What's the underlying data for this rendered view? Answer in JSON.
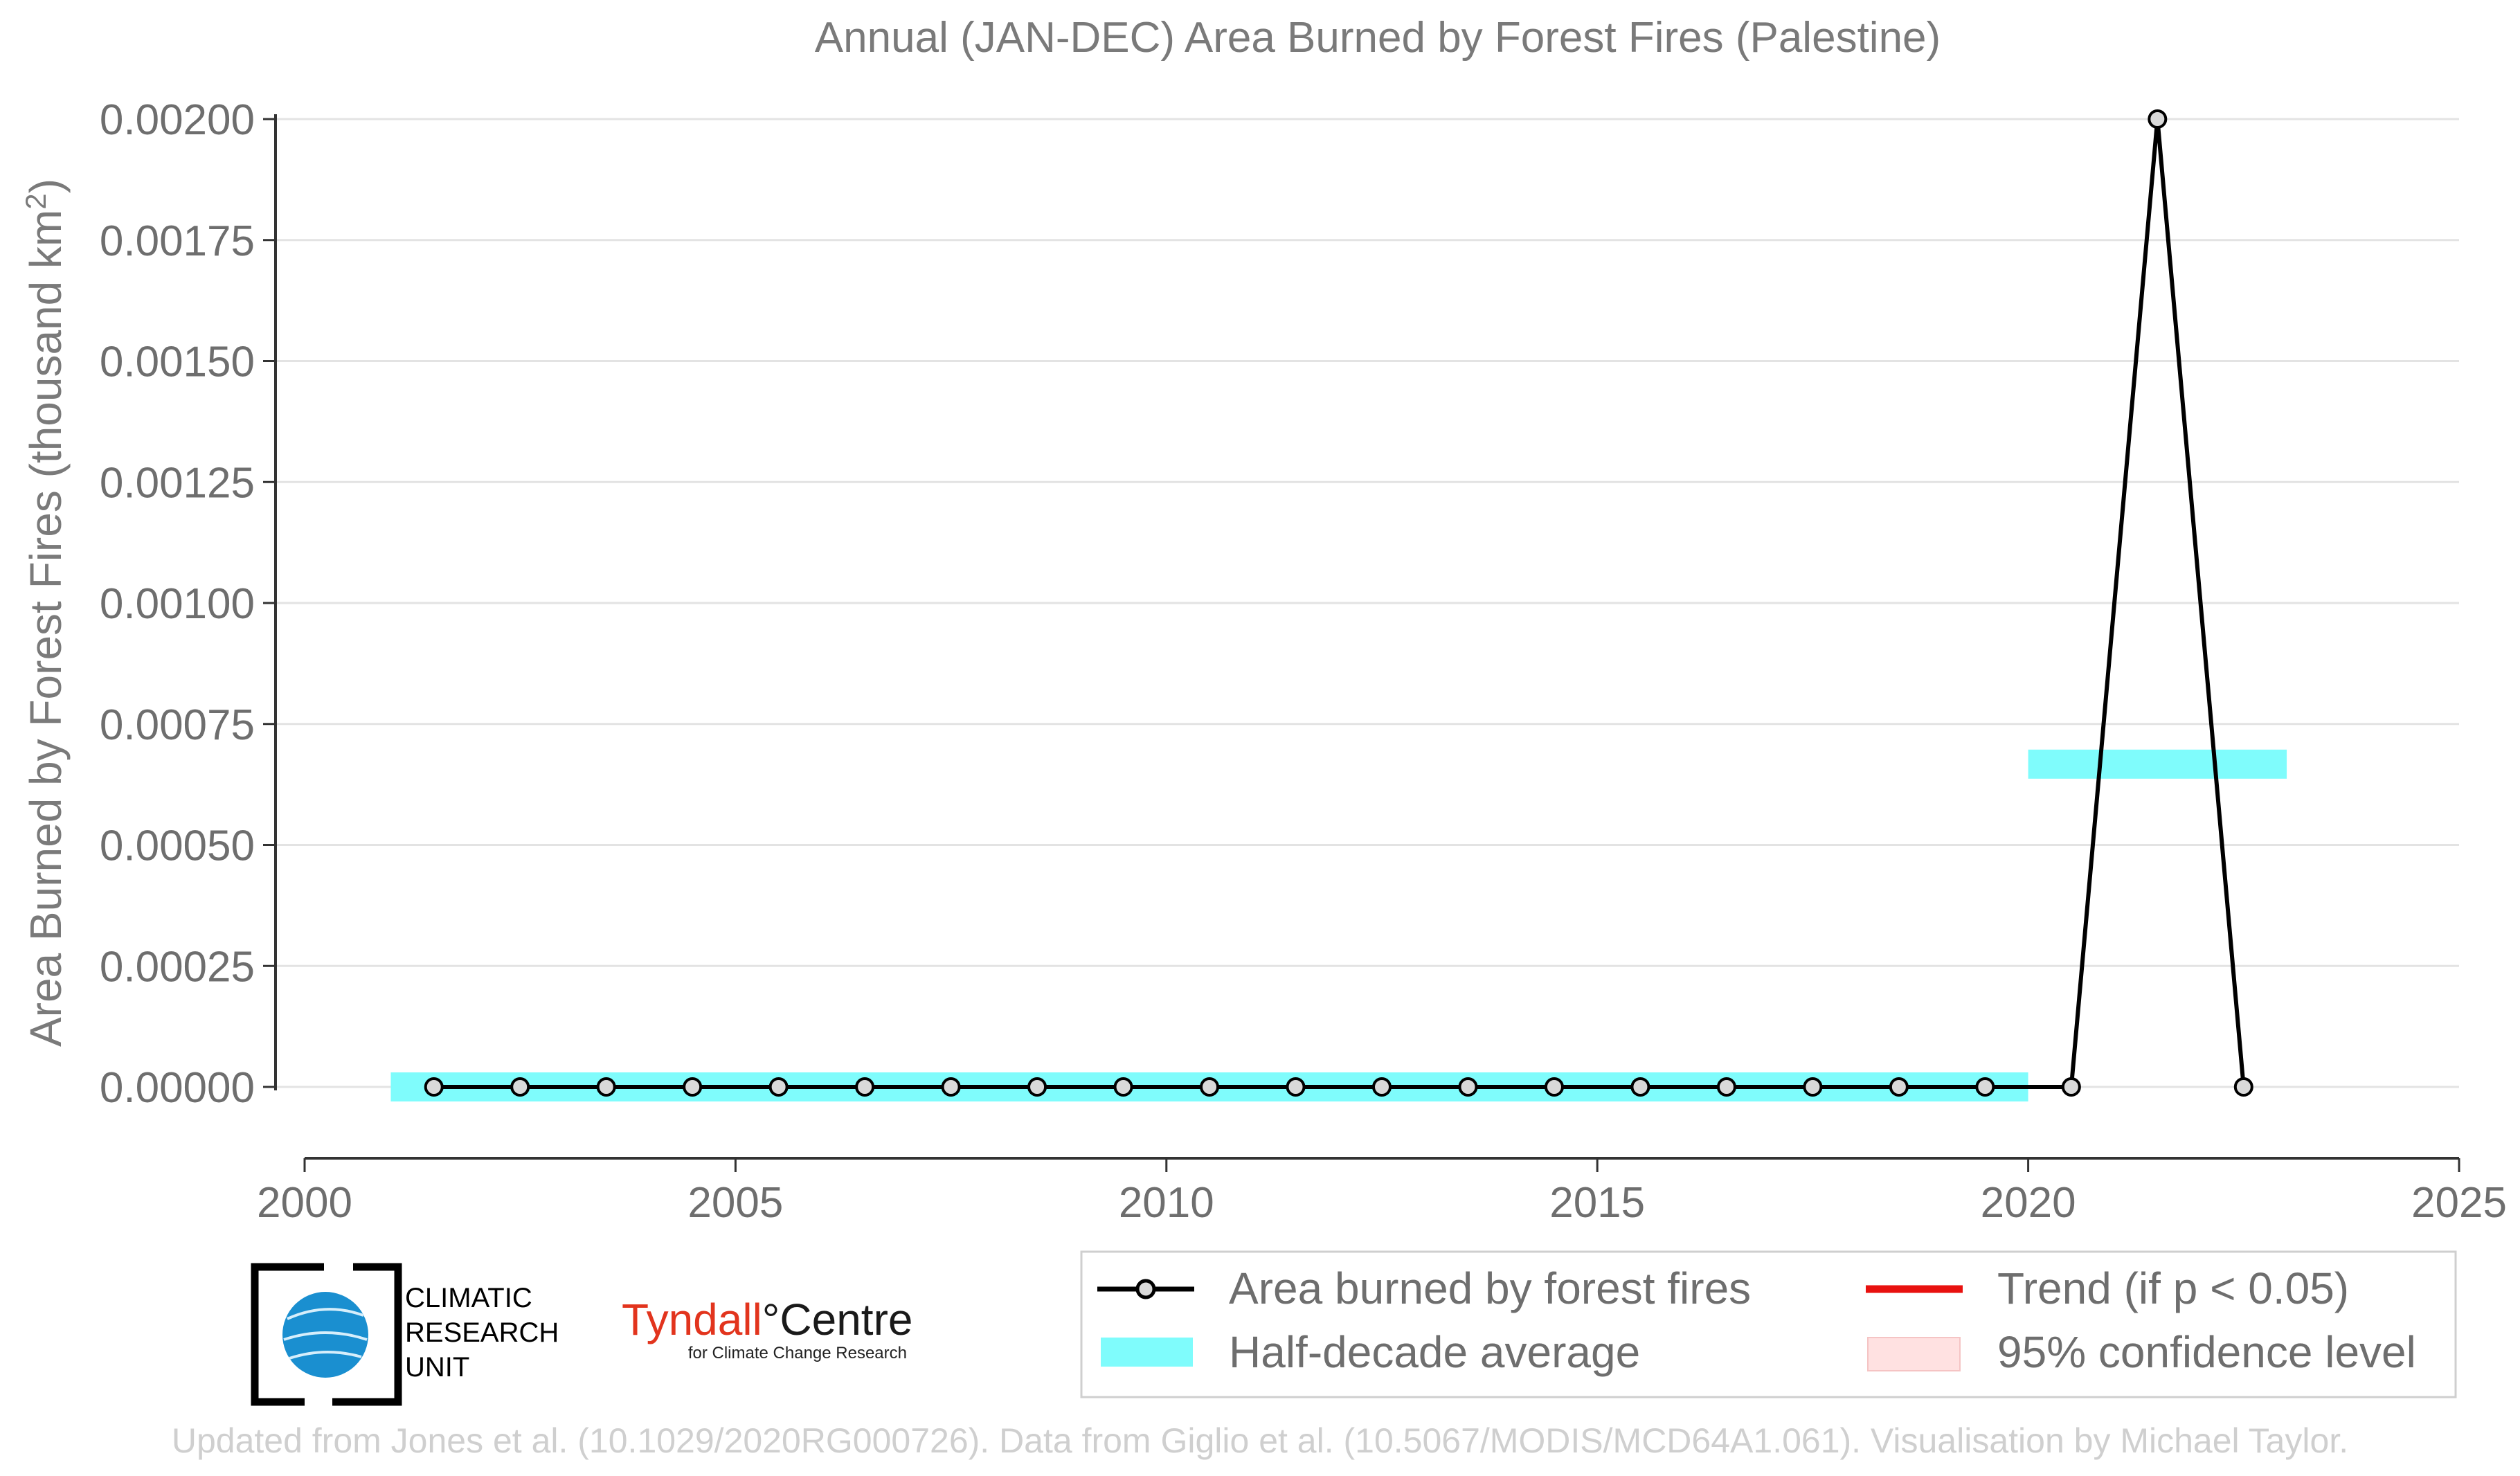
{
  "chart_data": {
    "type": "line",
    "title": "Annual (JAN-DEC) Area Burned by Forest Fires (Palestine)",
    "ylabel": "Area Burned by Forest Fires (thousand km²)",
    "xlabel": "",
    "xlim": [
      2000,
      2025
    ],
    "ylim": [
      -0.00015,
      0.002
    ],
    "x_ticks": [
      "2000",
      "2005",
      "2010",
      "2015",
      "2020",
      "2025"
    ],
    "y_ticks": [
      "0.00000",
      "0.00025",
      "0.00050",
      "0.00075",
      "0.00100",
      "0.00125",
      "0.00150",
      "0.00175",
      "0.00200"
    ],
    "grid": true,
    "legend_position": "bottom-right",
    "series": [
      {
        "name": "Area burned by forest fires",
        "x": [
          2001,
          2002,
          2003,
          2004,
          2005,
          2006,
          2007,
          2008,
          2009,
          2010,
          2011,
          2012,
          2013,
          2014,
          2015,
          2016,
          2017,
          2018,
          2019,
          2020,
          2021,
          2022
        ],
        "values": [
          0,
          0,
          0,
          0,
          0,
          0,
          0,
          0,
          0,
          0,
          0,
          0,
          0,
          0,
          0,
          0,
          0,
          0,
          0,
          0,
          0.002,
          0
        ],
        "color": "#000000"
      },
      {
        "name": "Half-decade average",
        "segments": [
          {
            "x_start": 2001,
            "x_end": 2020,
            "value": 0
          },
          {
            "x_start": 2020,
            "x_end": 2023,
            "value": 0.000667
          }
        ],
        "color": "#7ffcfc"
      }
    ],
    "legend": {
      "line_label": "Area burned by forest fires",
      "avg_label": "Half-decade average",
      "trend_label": "Trend (if p < 0.05)",
      "ci_label": "95% confidence level"
    },
    "colors": {
      "line": "#000000",
      "marker_fill": "#d9d9d9",
      "half_decade": "#7ffcfc",
      "trend": "#e8110f",
      "ci": "#ffe1e1"
    }
  },
  "logos": {
    "cru_text": [
      "CLIMATIC",
      "RESEARCH",
      "UNIT"
    ],
    "tyndall_main": "Tyndall",
    "tyndall_centre": "°Centre",
    "tyndall_sub": "for Climate Change Research"
  },
  "credit": "Updated from Jones et al. (10.1029/2020RG000726). Data from Giglio et al. (10.5067/MODIS/MCD64A1.061). Visualisation by Michael Taylor."
}
